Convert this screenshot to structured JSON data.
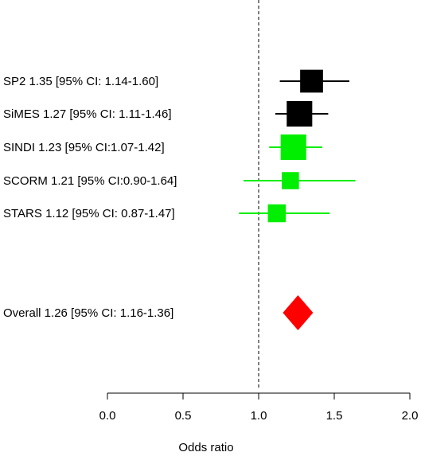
{
  "chart_data": {
    "type": "forest",
    "xlabel": "Odds ratio",
    "xlim": [
      0,
      2
    ],
    "ticks": [
      "0.0",
      "0.5",
      "1.0",
      "1.5",
      "2.0"
    ],
    "tick_values": [
      0,
      0.5,
      1.0,
      1.5,
      2.0
    ],
    "reference_line": 1.0,
    "studies": [
      {
        "label": "SP2 1.35 [95% CI: 1.14-1.60]",
        "or": 1.35,
        "lo": 1.14,
        "hi": 1.6,
        "color": "#000000",
        "weight": 0.78
      },
      {
        "label": "SiMES 1.27 [95% CI: 1.11-1.46]",
        "or": 1.27,
        "lo": 1.11,
        "hi": 1.46,
        "color": "#000000",
        "weight": 0.92
      },
      {
        "label": "SINDI 1.23 [95% CI:1.07-1.42]",
        "or": 1.23,
        "lo": 1.07,
        "hi": 1.42,
        "color": "#00ee00",
        "weight": 0.92
      },
      {
        "label": "SCORM 1.21 [95% CI:0.90-1.64]",
        "or": 1.21,
        "lo": 0.9,
        "hi": 1.64,
        "color": "#00ee00",
        "weight": 0.48
      },
      {
        "label": "STARS 1.12 [95% CI: 0.87-1.47]",
        "or": 1.12,
        "lo": 0.87,
        "hi": 1.47,
        "color": "#00ee00",
        "weight": 0.52
      }
    ],
    "overall": {
      "label": "Overall 1.26 [95% CI: 1.16-1.36]",
      "or": 1.26,
      "lo": 1.16,
      "hi": 1.36,
      "color": "#ff0000"
    }
  }
}
